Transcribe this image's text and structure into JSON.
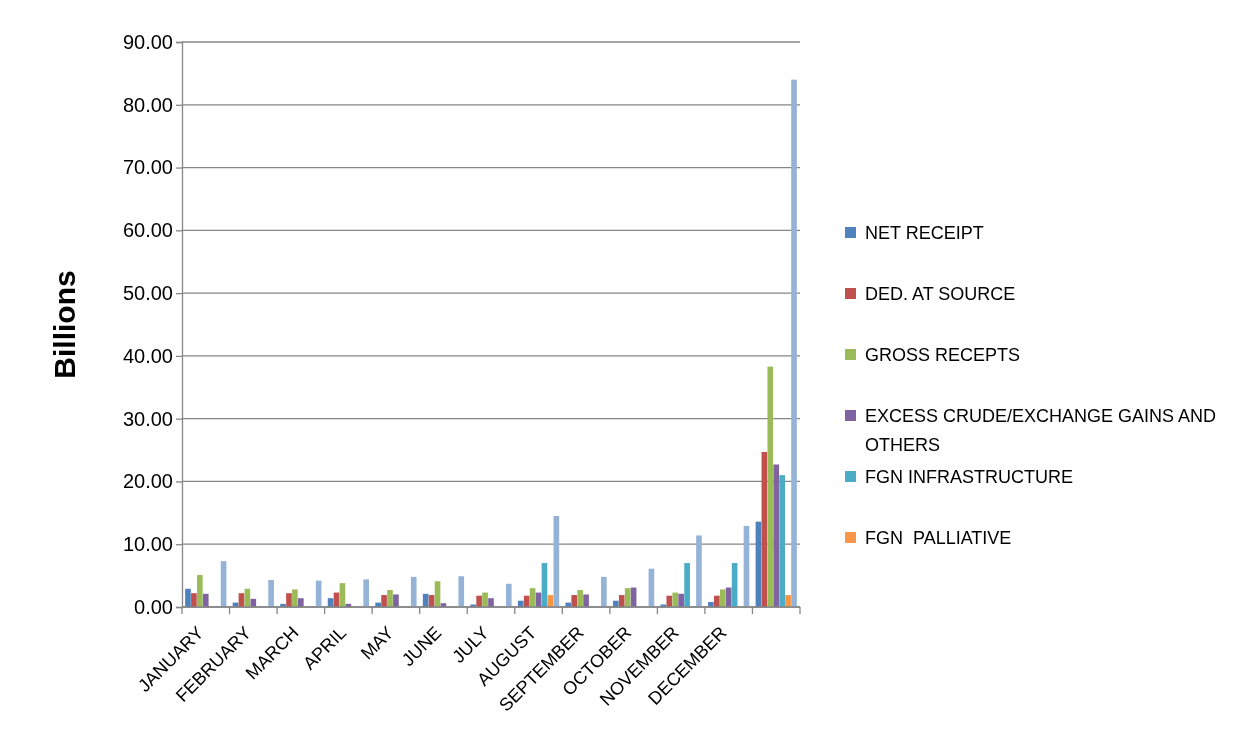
{
  "chart_data": {
    "type": "bar",
    "ylabel": "Billions",
    "categories": [
      "JANUARY",
      "FEBRUARY",
      "MARCH",
      "APRIL",
      "MAY",
      "JUNE",
      "JULY",
      "AUGUST",
      "SEPTEMBER",
      "OCTOBER",
      "NOVEMBER",
      "DECEMBER",
      null
    ],
    "series": [
      {
        "name": "NET RECEIPT",
        "color": "#4f81bd",
        "values": [
          2.9,
          0.7,
          0.5,
          1.4,
          0.7,
          2.1,
          0.4,
          1.0,
          0.7,
          1.0,
          0.4,
          0.8,
          13.6
        ]
      },
      {
        "name": "DED. AT SOURCE",
        "color": "#c0504d",
        "values": [
          2.2,
          2.2,
          2.2,
          2.3,
          1.9,
          1.9,
          1.8,
          1.8,
          1.9,
          1.9,
          1.8,
          1.8,
          24.7
        ]
      },
      {
        "name": "GROSS RECEPTS",
        "color": "#9bbb59",
        "values": [
          5.1,
          2.9,
          2.8,
          3.8,
          2.7,
          4.1,
          2.3,
          3.0,
          2.7,
          3.0,
          2.3,
          2.8,
          38.3
        ]
      },
      {
        "name": "EXCESS CRUDE/EXCHANGE GAINS AND OTHERS",
        "color": "#8064a2",
        "values": [
          2.1,
          1.3,
          1.4,
          0.5,
          2.0,
          0.6,
          1.4,
          2.3,
          2.0,
          3.1,
          2.1,
          3.1,
          22.7
        ]
      },
      {
        "name": "FGN INFRASTRUCTURE",
        "color": "#4bacc6",
        "values": [
          null,
          null,
          null,
          null,
          null,
          null,
          null,
          7.0,
          null,
          null,
          7.0,
          7.0,
          21.0
        ]
      },
      {
        "name": "FGN  PALLIATIVE",
        "color": "#f79646",
        "values": [
          null,
          null,
          null,
          null,
          null,
          null,
          null,
          1.9,
          null,
          null,
          null,
          null,
          1.9
        ]
      },
      {
        "color": "#95b3d7",
        "values": [
          7.3,
          4.3,
          4.2,
          4.4,
          4.8,
          4.9,
          3.7,
          14.5,
          4.8,
          6.1,
          11.4,
          12.9,
          84.0
        ]
      }
    ],
    "ylim": [
      0,
      90
    ],
    "yticks": [
      {
        "value": 0,
        "label": "0.00"
      },
      {
        "value": 10,
        "label": "10.00"
      },
      {
        "value": 20,
        "label": "20.00"
      },
      {
        "value": 30,
        "label": "30.00"
      },
      {
        "value": 40,
        "label": "40.00"
      },
      {
        "value": 50,
        "label": "50.00"
      },
      {
        "value": 60,
        "label": "60.00"
      },
      {
        "value": 70,
        "label": "70.00"
      },
      {
        "value": 80,
        "label": "80.00"
      },
      {
        "value": 90,
        "label": "90.00"
      }
    ],
    "grid": "y",
    "legend": "right"
  }
}
